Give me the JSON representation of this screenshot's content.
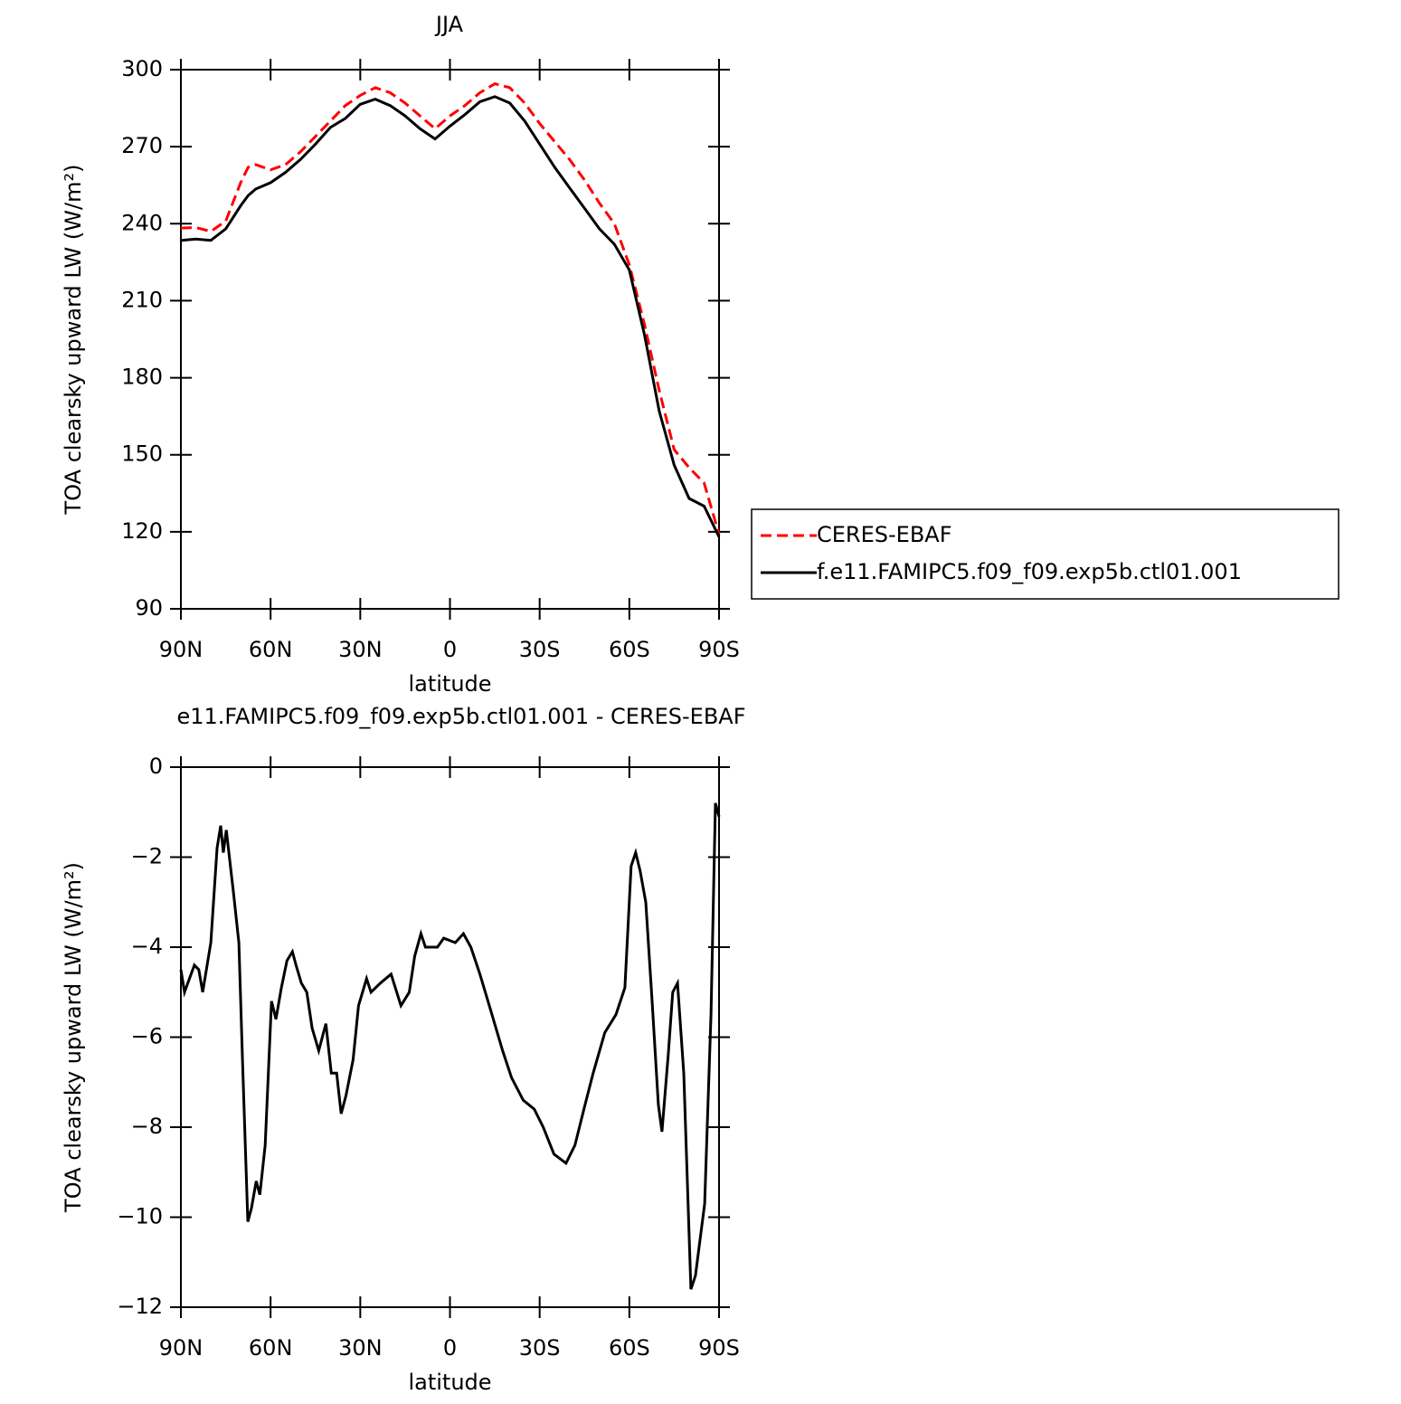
{
  "chart_data": [
    {
      "type": "line",
      "title": "JJA",
      "xlabel": "latitude",
      "ylabel": "TOA clearsky upward LW (W/m²)",
      "x": [
        90,
        85,
        80,
        75,
        70,
        67.5,
        65,
        60,
        55,
        50,
        45,
        40,
        35,
        30,
        25,
        20,
        15,
        10,
        5,
        0,
        -5,
        -10,
        -15,
        -20,
        -25,
        -30,
        -35,
        -40,
        -45,
        -50,
        -55,
        -60,
        -65,
        -70,
        -75,
        -80,
        -85,
        -90
      ],
      "series": [
        {
          "name": "CERES-EBAF",
          "color": "#ff0000",
          "linestyle": "dashed",
          "values": [
            238.3,
            238.5,
            237,
            241,
            256,
            262,
            263,
            261,
            263,
            268,
            274,
            280,
            286,
            290,
            293,
            291,
            287,
            282,
            277,
            282,
            286,
            291,
            294.5,
            293,
            287,
            279,
            272,
            265,
            257,
            248,
            240,
            224,
            201,
            175,
            152,
            145,
            139,
            119
          ]
        },
        {
          "name": "f.e11.FAMIPC5.f09_f09.exp5b.ctl01.001",
          "color": "#000000",
          "linestyle": "solid",
          "values": [
            233.5,
            234,
            233.5,
            238,
            247,
            251,
            253.5,
            256,
            260,
            265,
            271,
            277.5,
            281,
            286.5,
            288.5,
            286,
            282,
            277,
            273,
            278,
            282.5,
            287.5,
            289.5,
            287,
            280,
            271,
            262,
            254,
            246,
            238,
            232,
            222,
            197,
            167,
            146,
            133,
            130,
            118
          ]
        }
      ],
      "xlim": [
        90,
        -90
      ],
      "xticks": [
        {
          "value": 90,
          "label": "90N"
        },
        {
          "value": 60,
          "label": "60N"
        },
        {
          "value": 30,
          "label": "30N"
        },
        0,
        {
          "value": -30,
          "label": "30S"
        },
        {
          "value": -60,
          "label": "60S"
        },
        {
          "value": -90,
          "label": "90S"
        }
      ],
      "ylim": [
        90,
        300
      ],
      "yticks": [
        90,
        120,
        150,
        180,
        210,
        240,
        270,
        300
      ],
      "legend": "right"
    },
    {
      "type": "line",
      "title": "e11.FAMIPC5.f09_f09.exp5b.ctl01.001 - CERES-EBAF",
      "xlabel": "latitude",
      "ylabel": "TOA clearsky upward LW (W/m²)",
      "color": "#000000",
      "x": [
        90,
        88.8,
        85.5,
        84,
        82.7,
        80,
        77.9,
        76.7,
        75.8,
        74.8,
        72.4,
        70.6,
        69.4,
        67.6,
        66.4,
        64.8,
        63.6,
        61.8,
        59.7,
        58.2,
        56.4,
        54.5,
        52.7,
        51.5,
        49.7,
        47.9,
        46.1,
        43.9,
        41.5,
        39.7,
        37.9,
        36.4,
        34.8,
        32.4,
        30.6,
        27.9,
        26.4,
        23.3,
        19.7,
        16.4,
        13.6,
        11.8,
        9.7,
        8.2,
        4.2,
        2.1,
        -1.8,
        -4.5,
        -7,
        -10,
        -13.6,
        -17.6,
        -20.6,
        -24.5,
        -28.2,
        -31.2,
        -34.8,
        -38.8,
        -41.8,
        -44.8,
        -47.9,
        -51.8,
        -55.5,
        -58.5,
        -60.6,
        -62.1,
        -63.6,
        -65.5,
        -67.6,
        -69.7,
        -70.9,
        -73,
        -74.5,
        -76.1,
        -78.2,
        -80.6,
        -82.1,
        -85.2,
        -87.3,
        -88.8,
        -90
      ],
      "values": [
        -4.5,
        -5.0,
        -4.4,
        -4.5,
        -5.0,
        -3.9,
        -1.8,
        -1.3,
        -1.9,
        -1.4,
        -2.8,
        -3.9,
        -6.5,
        -10.1,
        -9.8,
        -9.2,
        -9.5,
        -8.4,
        -5.2,
        -5.6,
        -4.9,
        -4.3,
        -4.1,
        -4.4,
        -4.8,
        -5.0,
        -5.8,
        -6.3,
        -5.7,
        -6.8,
        -6.8,
        -7.7,
        -7.3,
        -6.5,
        -5.3,
        -4.7,
        -5.0,
        -4.8,
        -4.6,
        -5.3,
        -5.0,
        -4.2,
        -3.7,
        -4.0,
        -4.0,
        -3.8,
        -3.9,
        -3.7,
        -4.0,
        -4.6,
        -5.4,
        -6.3,
        -6.9,
        -7.4,
        -7.6,
        -8.0,
        -8.6,
        -8.8,
        -8.4,
        -7.6,
        -6.8,
        -5.9,
        -5.5,
        -4.9,
        -2.2,
        -1.9,
        -2.3,
        -3.0,
        -5.2,
        -7.5,
        -8.1,
        -6.4,
        -5.0,
        -4.8,
        -6.8,
        -11.6,
        -11.3,
        -9.7,
        -5.5,
        -0.8,
        -1.1
      ],
      "xlim": [
        90,
        -90
      ],
      "xticks": [
        {
          "value": 90,
          "label": "90N"
        },
        {
          "value": 60,
          "label": "60N"
        },
        {
          "value": 30,
          "label": "30N"
        },
        0,
        {
          "value": -30,
          "label": "30S"
        },
        {
          "value": -60,
          "label": "60S"
        },
        {
          "value": -90,
          "label": "90S"
        }
      ],
      "ylim": [
        -12,
        0
      ],
      "yticks": [
        {
          "value": -12,
          "label": "−12"
        },
        {
          "value": -10,
          "label": "−10"
        },
        {
          "value": -8,
          "label": "−8"
        },
        {
          "value": -6,
          "label": "−6"
        },
        {
          "value": -4,
          "label": "−4"
        },
        {
          "value": -2,
          "label": "−2"
        },
        0
      ]
    }
  ]
}
